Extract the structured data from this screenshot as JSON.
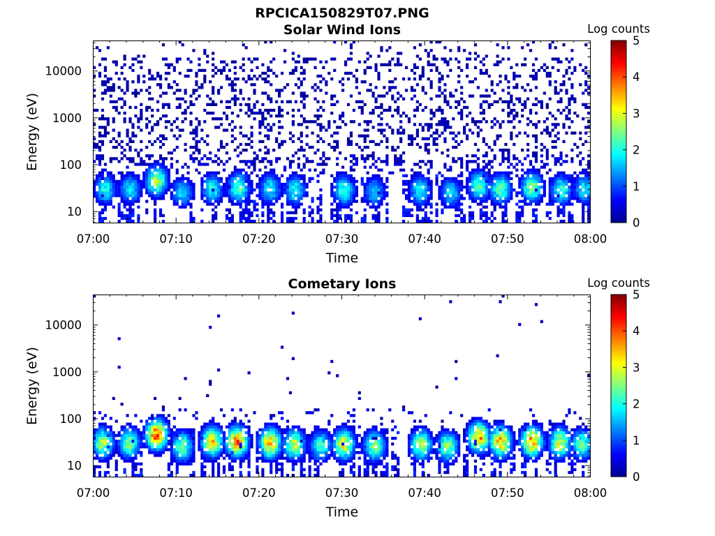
{
  "title": "RPCICA150829T07.PNG",
  "chart_data": [
    {
      "type": "heatmap",
      "subtitle": "Solar Wind Ions",
      "xlabel": "Time",
      "ylabel": "Energy (eV)",
      "x_ticks": [
        "07:00",
        "07:10",
        "07:20",
        "07:30",
        "07:40",
        "07:50",
        "08:00"
      ],
      "y_ticks": [
        "10",
        "100",
        "1000",
        "10000"
      ],
      "y_scale": "log",
      "ylim": [
        5.7,
        44000
      ],
      "colorbar": {
        "label": "Log counts",
        "ticks": [
          "0",
          "1",
          "2",
          "3",
          "4",
          "5"
        ],
        "range": [
          0,
          5
        ],
        "colormap": "jet"
      },
      "features": {
        "background": "sparse single counts (log 0-0.5) across 10 eV - 40 keV",
        "low_energy_bursts": [
          {
            "time_min": 1.5,
            "energy_ev": 30,
            "peak_log": 2.0
          },
          {
            "time_min": 4.5,
            "energy_ev": 30,
            "peak_log": 1.9
          },
          {
            "time_min": 7.7,
            "energy_ev": 45,
            "peak_log": 2.8
          },
          {
            "time_min": 10.8,
            "energy_ev": 25,
            "peak_log": 1.8
          },
          {
            "time_min": 14.4,
            "energy_ev": 30,
            "peak_log": 2.0
          },
          {
            "time_min": 17.6,
            "energy_ev": 32,
            "peak_log": 2.4
          },
          {
            "time_min": 21.4,
            "energy_ev": 30,
            "peak_log": 1.9
          },
          {
            "time_min": 24.4,
            "energy_ev": 28,
            "peak_log": 2.0
          },
          {
            "time_min": 30.3,
            "energy_ev": 28,
            "peak_log": 2.2
          },
          {
            "time_min": 34.0,
            "energy_ev": 26,
            "peak_log": 1.7
          },
          {
            "time_min": 39.5,
            "energy_ev": 28,
            "peak_log": 2.0
          },
          {
            "time_min": 43.2,
            "energy_ev": 25,
            "peak_log": 1.8
          },
          {
            "time_min": 46.6,
            "energy_ev": 35,
            "peak_log": 2.3
          },
          {
            "time_min": 49.2,
            "energy_ev": 30,
            "peak_log": 2.4
          },
          {
            "time_min": 53.0,
            "energy_ev": 32,
            "peak_log": 2.6
          },
          {
            "time_min": 56.5,
            "energy_ev": 28,
            "peak_log": 2.2
          },
          {
            "time_min": 59.3,
            "energy_ev": 30,
            "peak_log": 1.8
          }
        ]
      }
    },
    {
      "type": "heatmap",
      "subtitle": "Cometary Ions",
      "xlabel": "Time",
      "ylabel": "Energy (eV)",
      "x_ticks": [
        "07:00",
        "07:10",
        "07:20",
        "07:30",
        "07:40",
        "07:50",
        "08:00"
      ],
      "y_ticks": [
        "10",
        "100",
        "1000",
        "10000"
      ],
      "y_scale": "log",
      "ylim": [
        5.7,
        44000
      ],
      "colorbar": {
        "label": "Log counts",
        "ticks": [
          "0",
          "1",
          "2",
          "3",
          "4",
          "5"
        ],
        "range": [
          0,
          5
        ],
        "colormap": "jet"
      },
      "features": {
        "background": "very sparse single counts above 200 eV",
        "low_energy_bursts": [
          {
            "time_min": 1.2,
            "energy_ev": 30,
            "peak_log": 2.8
          },
          {
            "time_min": 4.4,
            "energy_ev": 30,
            "peak_log": 2.6
          },
          {
            "time_min": 7.7,
            "energy_ev": 45,
            "peak_log": 4.0
          },
          {
            "time_min": 10.8,
            "energy_ev": 25,
            "peak_log": 2.5
          },
          {
            "time_min": 14.4,
            "energy_ev": 32,
            "peak_log": 3.3
          },
          {
            "time_min": 17.4,
            "energy_ev": 32,
            "peak_log": 3.9
          },
          {
            "time_min": 21.4,
            "energy_ev": 30,
            "peak_log": 3.6
          },
          {
            "time_min": 24.3,
            "energy_ev": 28,
            "peak_log": 2.9
          },
          {
            "time_min": 27.5,
            "energy_ev": 26,
            "peak_log": 2.2
          },
          {
            "time_min": 30.3,
            "energy_ev": 28,
            "peak_log": 3.2
          },
          {
            "time_min": 34.0,
            "energy_ev": 26,
            "peak_log": 2.6
          },
          {
            "time_min": 39.6,
            "energy_ev": 28,
            "peak_log": 2.9
          },
          {
            "time_min": 42.8,
            "energy_ev": 25,
            "peak_log": 2.6
          },
          {
            "time_min": 46.6,
            "energy_ev": 40,
            "peak_log": 3.7
          },
          {
            "time_min": 49.2,
            "energy_ev": 32,
            "peak_log": 3.6
          },
          {
            "time_min": 53.0,
            "energy_ev": 32,
            "peak_log": 3.7
          },
          {
            "time_min": 56.4,
            "energy_ev": 30,
            "peak_log": 3.0
          },
          {
            "time_min": 59.0,
            "energy_ev": 28,
            "peak_log": 2.4
          }
        ]
      }
    }
  ]
}
